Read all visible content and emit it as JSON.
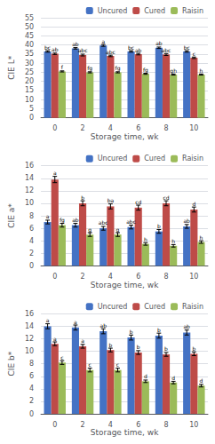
{
  "chart_data": [
    {
      "type": "bar",
      "xlabel": "Storage time, wk",
      "ylabel": "CIE L*",
      "categories": [
        "0",
        "2",
        "4",
        "6",
        "8",
        "10"
      ],
      "series": [
        {
          "name": "Uncured",
          "color": "#4472c4",
          "values": [
            36.5,
            38.2,
            39.8,
            36.5,
            38.5,
            36.5
          ],
          "errors": [
            0.4,
            0.4,
            0.5,
            0.4,
            0.4,
            0.4
          ],
          "annotations": [
            "bc",
            "ab",
            "a",
            "bc",
            "ab",
            "bc"
          ]
        },
        {
          "name": "Cured",
          "color": "#be4b48",
          "values": [
            35.2,
            34.5,
            34.0,
            35.0,
            34.8,
            33.0
          ],
          "errors": [
            0.4,
            0.5,
            0.4,
            0.4,
            0.5,
            0.4
          ],
          "annotations": [
            "ab",
            "abc",
            "abc",
            "ab",
            "abc",
            "c"
          ]
        },
        {
          "name": "Raisin",
          "color": "#9bbb59",
          "values": [
            25.5,
            25.0,
            25.0,
            24.2,
            23.8,
            23.8
          ],
          "errors": [
            0.3,
            0.3,
            0.3,
            0.3,
            0.3,
            0.3
          ],
          "annotations": [
            "f",
            "fg",
            "fg",
            "fg",
            "gh",
            "h"
          ]
        }
      ],
      "ylim": [
        0,
        55
      ],
      "yticks": [
        0,
        5,
        10,
        15,
        20,
        25,
        30,
        35,
        40,
        45,
        50,
        55
      ],
      "grid": true,
      "legend": "upper right"
    },
    {
      "type": "bar",
      "xlabel": "Storage time, wk",
      "ylabel": "CIE a*",
      "categories": [
        "0",
        "2",
        "4",
        "6",
        "8",
        "10"
      ],
      "series": [
        {
          "name": "Uncured",
          "color": "#4472c4",
          "values": [
            7.0,
            6.5,
            6.0,
            6.2,
            5.5,
            6.3
          ],
          "errors": [
            0.3,
            0.3,
            0.3,
            0.3,
            0.3,
            0.3
          ],
          "annotations": [
            "a",
            "ab",
            "abc",
            "abc",
            "b",
            "ab"
          ]
        },
        {
          "name": "Cured",
          "color": "#be4b48",
          "values": [
            13.8,
            10.0,
            9.5,
            9.3,
            10.0,
            9.0
          ],
          "errors": [
            0.5,
            0.4,
            0.4,
            0.4,
            0.4,
            0.4
          ],
          "annotations": [
            "a",
            "b",
            "ba",
            "cd",
            "cd",
            "d"
          ]
        },
        {
          "name": "Raisin",
          "color": "#9bbb59",
          "values": [
            6.5,
            5.0,
            5.0,
            3.5,
            3.2,
            3.8
          ],
          "errors": [
            0.3,
            0.3,
            0.3,
            0.2,
            0.2,
            0.2
          ],
          "annotations": [
            "fg",
            "g",
            "g",
            "h",
            "h",
            "h"
          ]
        }
      ],
      "ylim": [
        0,
        16
      ],
      "yticks": [
        0,
        2,
        4,
        6,
        8,
        10,
        12,
        14,
        16
      ],
      "grid": true,
      "legend": "upper right"
    },
    {
      "type": "bar",
      "xlabel": "Storage time, wk",
      "ylabel": "CIE b*",
      "categories": [
        "0",
        "2",
        "4",
        "6",
        "8",
        "10"
      ],
      "series": [
        {
          "name": "Uncured",
          "color": "#4472c4",
          "values": [
            14.0,
            13.8,
            13.2,
            12.2,
            12.5,
            13.0
          ],
          "errors": [
            0.4,
            0.4,
            0.4,
            0.4,
            0.4,
            0.4
          ],
          "annotations": [
            "a",
            "a",
            "ab",
            "b",
            "b",
            "ab"
          ]
        },
        {
          "name": "Cured",
          "color": "#be4b48",
          "values": [
            11.2,
            10.8,
            10.2,
            9.8,
            9.5,
            9.6
          ],
          "errors": [
            0.3,
            0.3,
            0.3,
            0.3,
            0.3,
            0.3
          ],
          "annotations": [
            "a",
            "a",
            "b",
            "b",
            "b",
            "b"
          ]
        },
        {
          "name": "Raisin",
          "color": "#9bbb59",
          "values": [
            8.2,
            7.0,
            7.0,
            5.2,
            5.0,
            4.5
          ],
          "errors": [
            0.3,
            0.3,
            0.3,
            0.2,
            0.2,
            0.2
          ],
          "annotations": [
            "c",
            "c",
            "c",
            "d",
            "d",
            "d"
          ]
        }
      ],
      "ylim": [
        0,
        16
      ],
      "yticks": [
        0,
        2,
        4,
        6,
        8,
        10,
        12,
        14,
        16
      ],
      "grid": true,
      "legend": "upper right"
    }
  ]
}
